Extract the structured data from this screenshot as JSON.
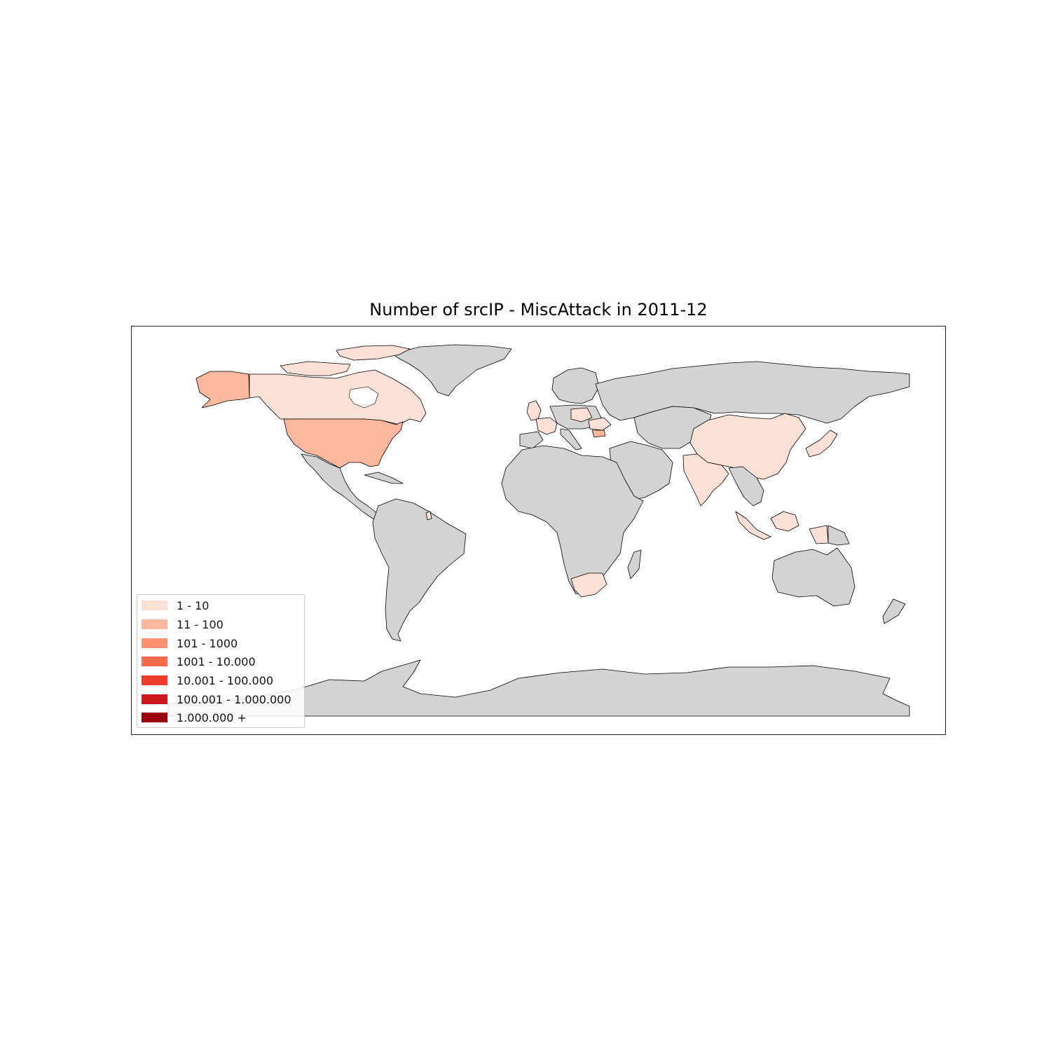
{
  "chart_data": {
    "type": "choropleth",
    "title": "Number of srcIP - MiscAttack in 2011-12",
    "no_data_color": "#d3d3d3",
    "border_color": "#000000",
    "legend": {
      "placement": "lower-left",
      "items": [
        {
          "label": "1 - 10",
          "color": "#fde0d6"
        },
        {
          "label": "11 - 100",
          "color": "#fbb89e"
        },
        {
          "label": "101 - 1000",
          "color": "#fc9272"
        },
        {
          "label": "1001 - 10.000",
          "color": "#fb6a4a"
        },
        {
          "label": "10.001 - 100.000",
          "color": "#ef3b2c"
        },
        {
          "label": "100.001 - 1.000.000",
          "color": "#cb181d"
        },
        {
          "label": "1.000.000 +",
          "color": "#99000d"
        }
      ]
    },
    "regions": [
      {
        "name": "United States",
        "bin": "11 - 100"
      },
      {
        "name": "Alaska",
        "bin": "11 - 100"
      },
      {
        "name": "Canada",
        "bin": "1 - 10"
      },
      {
        "name": "China",
        "bin": "1 - 10"
      },
      {
        "name": "India",
        "bin": "1 - 10"
      },
      {
        "name": "South Africa",
        "bin": "1 - 10"
      },
      {
        "name": "Malaysia",
        "bin": "1 - 10"
      },
      {
        "name": "Indonesia",
        "bin": "1 - 10"
      },
      {
        "name": "France",
        "bin": "1 - 10"
      },
      {
        "name": "United Kingdom",
        "bin": "1 - 10"
      },
      {
        "name": "Japan",
        "bin": "1 - 10"
      },
      {
        "name": "Bulgaria",
        "bin": "11 - 100"
      },
      {
        "name": "Romania",
        "bin": "1 - 10"
      },
      {
        "name": "Poland",
        "bin": "1 - 10"
      }
    ]
  }
}
